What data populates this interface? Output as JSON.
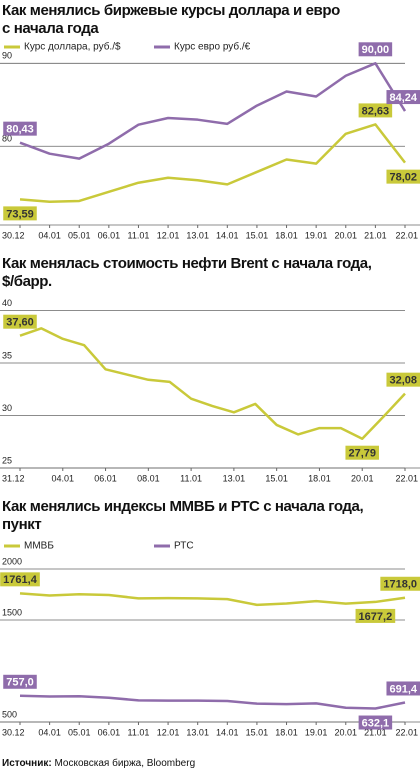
{
  "chart_data": [
    {
      "type": "line",
      "title": "Как менялись биржевые курсы доллара и евро\nс начала года",
      "categories": [
        "30.12",
        "04.01",
        "05.01",
        "06.01",
        "11.01",
        "12.01",
        "13.01",
        "14.01",
        "15.01",
        "18.01",
        "19.01",
        "20.01",
        "21.01",
        "22.01"
      ],
      "series": [
        {
          "name": "Курс доллара, руб./$",
          "color": "#c9c93a",
          "values": [
            73.59,
            73.3,
            73.4,
            74.5,
            75.6,
            76.2,
            75.9,
            75.4,
            76.9,
            78.4,
            77.9,
            81.5,
            82.63,
            78.02
          ],
          "value_labels": [
            "73,59",
            null,
            null,
            null,
            null,
            null,
            null,
            null,
            null,
            null,
            null,
            null,
            "82,63",
            "78,02"
          ]
        },
        {
          "name": "Курс евро руб./€",
          "color": "#8f6cab",
          "values": [
            80.43,
            79.1,
            78.5,
            80.3,
            82.6,
            83.4,
            83.2,
            82.7,
            84.9,
            86.6,
            86.0,
            88.5,
            90.0,
            84.24
          ],
          "value_labels": [
            "80,43",
            null,
            null,
            null,
            null,
            null,
            null,
            null,
            null,
            null,
            null,
            null,
            "90,00",
            "84,24"
          ]
        }
      ],
      "ylim": [
        70.5,
        91
      ],
      "yticks": [
        80,
        90
      ],
      "grid": true
    },
    {
      "type": "line",
      "title": "Как менялась стоимость нефти Brent с начала года,\n$/барр.",
      "categories": [
        "31.12",
        null,
        "04.01",
        null,
        "06.01",
        null,
        "08.01",
        null,
        "11.01",
        null,
        "13.01",
        null,
        "15.01",
        null,
        "18.01",
        null,
        "20.01",
        null,
        "22.01"
      ],
      "color": "#c9c93a",
      "values": [
        37.6,
        38.3,
        37.3,
        36.7,
        34.4,
        33.9,
        33.4,
        33.2,
        31.6,
        30.9,
        30.3,
        31.1,
        29.1,
        28.2,
        28.8,
        28.8,
        27.79,
        29.9,
        32.08
      ],
      "value_labels": [
        "37,60",
        null,
        null,
        null,
        null,
        null,
        null,
        null,
        null,
        null,
        null,
        null,
        null,
        null,
        null,
        null,
        "27,79",
        null,
        "32,08"
      ],
      "ylim": [
        25,
        41
      ],
      "yticks": [
        25,
        30,
        35,
        40
      ],
      "grid": true
    },
    {
      "type": "line",
      "title": "Как менялись индексы ММВБ и РТС с начала года,\nпункт",
      "categories": [
        "30.12",
        "04.01",
        "05.01",
        "06.01",
        "11.01",
        "12.01",
        "13.01",
        "14.01",
        "15.01",
        "18.01",
        "19.01",
        "20.01",
        "21.01",
        "22.01"
      ],
      "series": [
        {
          "name": "ММВБ",
          "color": "#c9c93a",
          "values": [
            1761.4,
            1740,
            1752,
            1745,
            1712,
            1715,
            1712,
            1705,
            1648,
            1662,
            1685,
            1660,
            1677.2,
            1718.0
          ],
          "value_labels": [
            "1761,4",
            null,
            null,
            null,
            null,
            null,
            null,
            null,
            null,
            null,
            null,
            null,
            "1677,2",
            "1718,0"
          ]
        },
        {
          "name": "РТС",
          "color": "#8f6cab",
          "values": [
            757.0,
            750,
            752,
            738,
            712,
            710,
            710,
            706,
            680,
            675,
            683,
            640,
            632.1,
            691.4
          ],
          "value_labels": [
            "757,0",
            null,
            null,
            null,
            null,
            null,
            null,
            null,
            null,
            null,
            null,
            null,
            "632,1",
            "691,4"
          ]
        }
      ],
      "ylim": [
        500,
        2000
      ],
      "yticks": [
        500,
        1500,
        2000
      ],
      "grid": true
    }
  ],
  "source_label": "Источник:",
  "source": "Московская биржа, Bloomberg"
}
